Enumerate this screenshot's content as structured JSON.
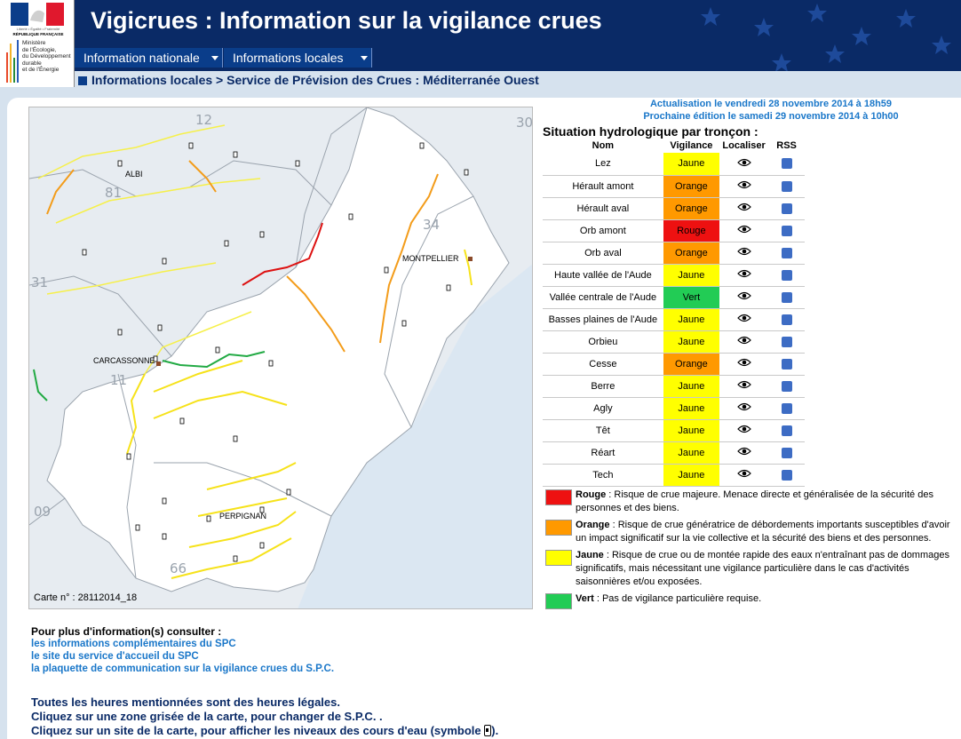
{
  "header": {
    "title": "Vigicrues : Information sur la vigilance crues",
    "logo": {
      "motto": "Liberté • Égalité • Fraternité",
      "republic": "RÉPUBLIQUE FRANÇAISE",
      "ministry_lines": [
        "Ministère",
        "de l'Écologie,",
        "du Développement",
        "durable",
        "et de l'Énergie"
      ]
    }
  },
  "nav": {
    "items": [
      {
        "label": "Information nationale"
      },
      {
        "label": "Informations locales"
      }
    ]
  },
  "breadcrumb": "Informations locales > Service de Prévision des Crues : Méditerranée Ouest",
  "update": {
    "line1": "Actualisation le vendredi 28 novembre 2014 à 18h59",
    "line2": "Prochaine édition le samedi 29 novembre 2014 à 10h00"
  },
  "situation": {
    "title": "Situation hydrologique par tronçon :",
    "columns": [
      "Nom",
      "Vigilance",
      "Localiser",
      "RSS"
    ],
    "rows": [
      {
        "name": "Lez",
        "vigilance": "Jaune"
      },
      {
        "name": "Hérault amont",
        "vigilance": "Orange"
      },
      {
        "name": "Hérault aval",
        "vigilance": "Orange"
      },
      {
        "name": "Orb amont",
        "vigilance": "Rouge"
      },
      {
        "name": "Orb aval",
        "vigilance": "Orange"
      },
      {
        "name": "Haute vallée de l'Aude",
        "vigilance": "Jaune"
      },
      {
        "name": "Vallée centrale de l'Aude",
        "vigilance": "Vert"
      },
      {
        "name": "Basses plaines de l'Aude",
        "vigilance": "Jaune"
      },
      {
        "name": "Orbieu",
        "vigilance": "Jaune"
      },
      {
        "name": "Cesse",
        "vigilance": "Orange"
      },
      {
        "name": "Berre",
        "vigilance": "Jaune"
      },
      {
        "name": "Agly",
        "vigilance": "Jaune"
      },
      {
        "name": "Têt",
        "vigilance": "Jaune"
      },
      {
        "name": "Réart",
        "vigilance": "Jaune"
      },
      {
        "name": "Tech",
        "vigilance": "Jaune"
      }
    ]
  },
  "colors": {
    "Rouge": "#ee1111",
    "Orange": "#ff9900",
    "Jaune": "#ffff00",
    "Vert": "#22cc55"
  },
  "legend": [
    {
      "level": "Rouge",
      "text": "Risque de crue majeure. Menace directe et généralisée de la sécurité des personnes et des biens."
    },
    {
      "level": "Orange",
      "text": "Risque de crue génératrice de débordements importants susceptibles d'avoir un impact significatif sur la vie collective et la sécurité des biens et des personnes."
    },
    {
      "level": "Jaune",
      "text": "Risque de crue ou de montée rapide des eaux n'entraînant pas de dommages significatifs, mais nécessitant une vigilance particulière dans le cas d'activités saisonnières et/ou exposées."
    },
    {
      "level": "Vert",
      "text": "Pas de vigilance particulière requise."
    }
  ],
  "map": {
    "caption": "Carte n° : 28112014_18",
    "cities": [
      "ALBI",
      "MONTPELLIER",
      "CARCASSONNE",
      "PERPIGNAN"
    ],
    "departments": [
      "12",
      "30",
      "81",
      "34",
      "31",
      "11",
      "09",
      "66"
    ]
  },
  "more_info": {
    "heading": "Pour plus d'information(s) consulter :",
    "links": [
      "les informations complémentaires du SPC",
      "le site du service d'accueil du SPC",
      "la plaquette de communication sur la vigilance crues du S.P.C."
    ]
  },
  "notes": [
    "Toutes les heures mentionnées sont des heures légales.",
    "Cliquez sur une zone grisée de la carte, pour changer de S.P.C. .",
    "Cliquez sur un site de la carte, pour afficher les niveaux des cours d'eau (symbole"
  ],
  "notes_end": ")."
}
